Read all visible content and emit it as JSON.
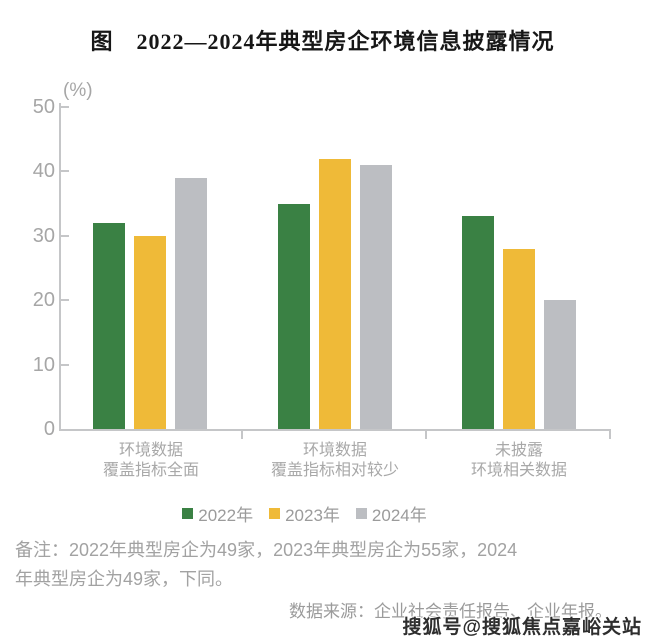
{
  "chart_data": {
    "type": "bar",
    "title": "图　2022—2024年典型房企环境信息披露情况",
    "unit_label": "(%)",
    "categories": [
      "环境数据\n覆盖指标全面",
      "环境数据\n覆盖指标相对较少",
      "未披露\n环境相关数据"
    ],
    "series": [
      {
        "name": "2022年",
        "color": "#3A8144",
        "values": [
          32,
          35,
          33
        ]
      },
      {
        "name": "2023年",
        "color": "#EFBA38",
        "values": [
          30,
          42,
          28
        ]
      },
      {
        "name": "2024年",
        "color": "#BCBEC2",
        "values": [
          39,
          41,
          20
        ]
      }
    ],
    "ylim": [
      0,
      50
    ],
    "ytick_step": 10,
    "grid": false,
    "legend_position": "bottom-center"
  },
  "footer": {
    "note_lines": [
      "备注：2022年典型房企为49家，2023年典型房企为55家，2024",
      "年典型房企为49家，下同。"
    ],
    "source": "数据来源：企业社会责任报告、企业年报。",
    "watermark": "搜狐号@搜狐焦点嘉峪关站"
  },
  "colors": {
    "axis": "#C5C6C8",
    "tick_label": "#A6A6A6",
    "category_label": "#A8A8A8",
    "legend_label": "#9B9B9B",
    "note": "#A2A2A2",
    "title_text": "#171717",
    "watermark_text": "#2E2E2E"
  }
}
